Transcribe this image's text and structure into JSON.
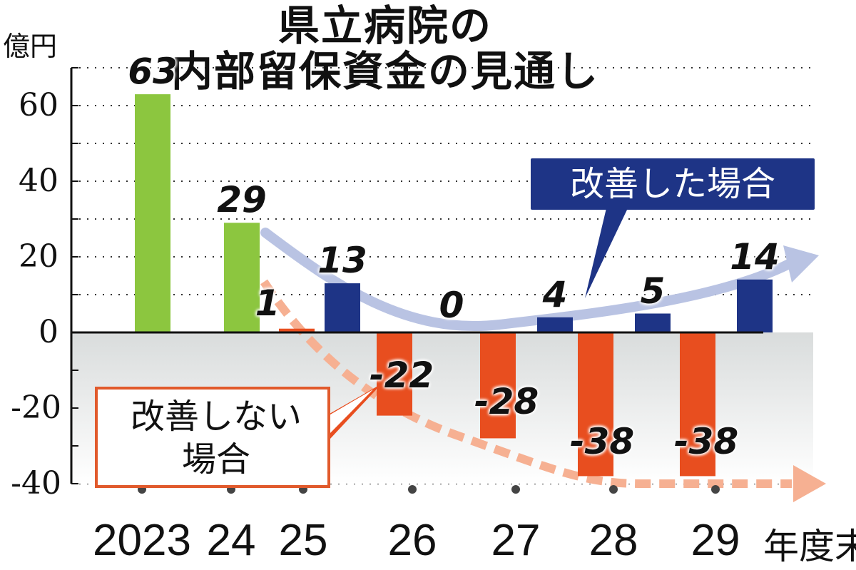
{
  "title_line1": "県立病院の",
  "title_line2": "内部留保資金の見通し",
  "y_unit": "億円",
  "x_suffix": "年度末",
  "colors": {
    "actual": "#8cc63f",
    "improve": "#1e3486",
    "noimprove": "#e84e1f",
    "improve_arrow": "#b9c3e3",
    "noimprove_arrow": "#f6b092",
    "negative_band": "#d9dcdc"
  },
  "callouts": {
    "improve": "改善した場合",
    "noimprove_line1": "改善しない",
    "noimprove_line2": "場合"
  },
  "chart_data": {
    "type": "bar",
    "title": "県立病院の内部留保資金の見通し",
    "ylabel": "億円",
    "xlabel": "年度末",
    "ylim": [
      -40,
      70
    ],
    "yticks": [
      60,
      40,
      20,
      0,
      -20,
      -40
    ],
    "ytick_labels": [
      "60",
      "40",
      "20",
      "0",
      "-20",
      "-40"
    ],
    "categories": [
      "2023",
      "24",
      "25",
      "26",
      "27",
      "28",
      "29"
    ],
    "grid": true,
    "series": [
      {
        "key": "actual",
        "values": [
          63,
          29,
          null,
          null,
          null,
          null,
          null
        ],
        "labels": [
          "63",
          "29",
          null,
          null,
          null,
          null,
          null
        ]
      },
      {
        "key": "noimprove",
        "name": "改善しない場合",
        "values": [
          null,
          null,
          1,
          -22,
          -28,
          -38,
          -38
        ],
        "labels": [
          null,
          null,
          "1",
          "-22",
          "-28",
          "-38",
          "-38"
        ]
      },
      {
        "key": "improve",
        "name": "改善した場合",
        "values": [
          null,
          null,
          13,
          0,
          4,
          5,
          14
        ],
        "labels": [
          null,
          null,
          "13",
          "0",
          "4",
          "5",
          "14"
        ]
      }
    ]
  }
}
